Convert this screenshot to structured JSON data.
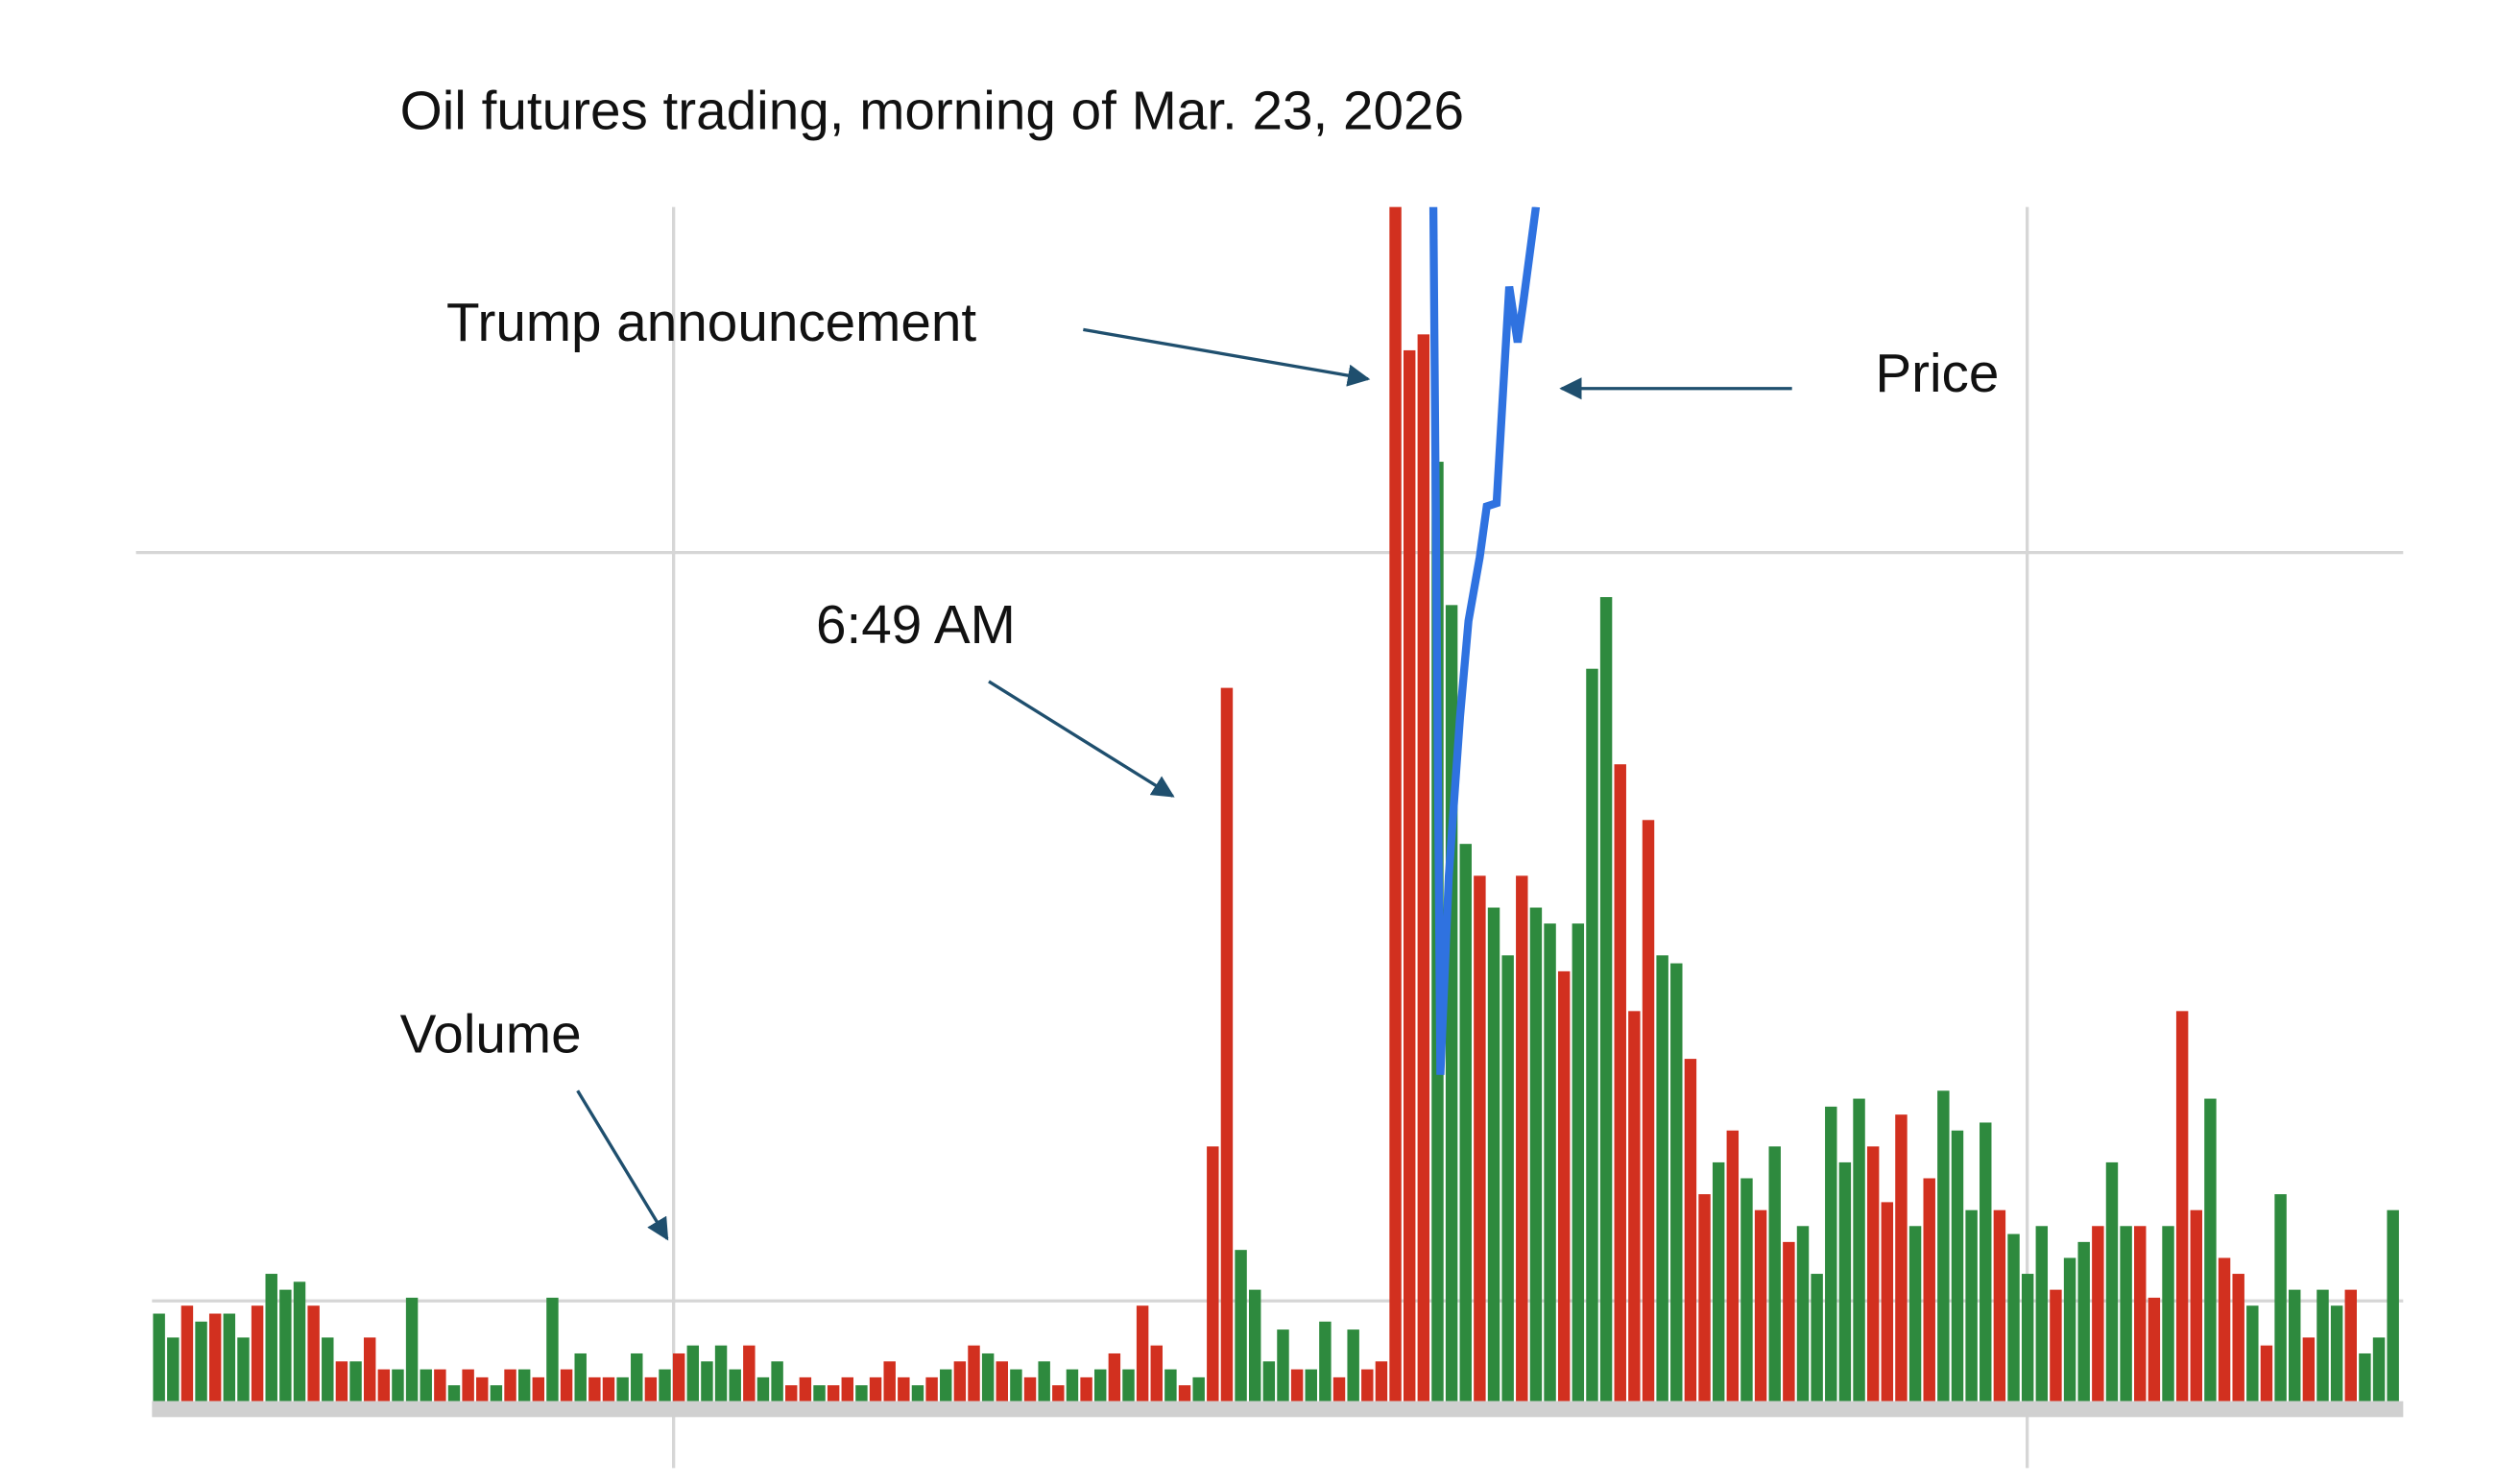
{
  "chart_data": {
    "type": "bar",
    "title": "Oil futures trading, morning of Mar. 23, 2026",
    "annotations": [
      "Trump announcement",
      "Price",
      "6:49 AM",
      "Volume"
    ],
    "xlim": [
      0,
      160
    ],
    "ylim": [
      0,
      750
    ],
    "values": [
      55,
      40,
      60,
      50,
      55,
      55,
      40,
      60,
      80,
      70,
      75,
      60,
      40,
      25,
      25,
      40,
      20,
      20,
      65,
      20,
      20,
      10,
      20,
      15,
      10,
      20,
      20,
      15,
      65,
      20,
      30,
      15,
      15,
      15,
      30,
      15,
      20,
      30,
      35,
      25,
      35,
      20,
      35,
      15,
      25,
      10,
      15,
      10,
      10,
      15,
      10,
      15,
      25,
      15,
      10,
      15,
      20,
      25,
      35,
      30,
      25,
      20,
      15,
      25,
      10,
      20,
      15,
      20,
      30,
      20,
      60,
      35,
      20,
      10,
      15,
      160,
      448,
      95,
      70,
      25,
      45,
      20,
      20,
      50,
      15,
      45,
      20,
      25,
      750,
      660,
      670,
      590,
      500,
      350,
      330,
      310,
      280,
      330,
      310,
      300,
      270,
      300,
      460,
      505,
      400,
      245,
      365,
      280,
      275,
      215,
      130,
      150,
      170,
      140,
      120,
      160,
      100,
      110,
      80,
      185,
      150,
      190,
      160,
      125,
      180,
      110,
      140,
      195,
      170,
      120,
      175,
      120,
      105,
      80,
      110,
      70,
      90,
      100,
      110,
      150,
      110,
      110,
      65,
      110,
      245,
      120,
      190,
      90,
      80,
      60,
      35,
      130,
      70,
      40,
      70,
      60,
      70,
      30,
      40,
      120
    ],
    "bar_colors": [
      "#2e8a3e",
      "#2e8a3e",
      "#d2301f",
      "#2e8a3e",
      "#d2301f",
      "#2e8a3e",
      "#2e8a3e",
      "#d2301f",
      "#2e8a3e",
      "#2e8a3e",
      "#2e8a3e",
      "#d2301f",
      "#2e8a3e",
      "#d2301f",
      "#2e8a3e",
      "#d2301f",
      "#d2301f",
      "#2e8a3e",
      "#2e8a3e",
      "#2e8a3e",
      "#d2301f",
      "#2e8a3e",
      "#d2301f",
      "#d2301f",
      "#2e8a3e",
      "#d2301f",
      "#2e8a3e",
      "#d2301f",
      "#2e8a3e",
      "#d2301f",
      "#2e8a3e",
      "#d2301f",
      "#d2301f",
      "#2e8a3e",
      "#2e8a3e",
      "#d2301f",
      "#2e8a3e",
      "#d2301f",
      "#2e8a3e",
      "#2e8a3e",
      "#2e8a3e",
      "#2e8a3e",
      "#d2301f",
      "#2e8a3e",
      "#2e8a3e",
      "#d2301f",
      "#d2301f",
      "#2e8a3e",
      "#d2301f",
      "#d2301f",
      "#2e8a3e",
      "#d2301f",
      "#d2301f",
      "#d2301f",
      "#2e8a3e",
      "#d2301f",
      "#2e8a3e",
      "#d2301f",
      "#d2301f",
      "#2e8a3e",
      "#d2301f",
      "#2e8a3e",
      "#d2301f",
      "#2e8a3e",
      "#d2301f",
      "#2e8a3e",
      "#d2301f",
      "#2e8a3e",
      "#d2301f",
      "#2e8a3e",
      "#d2301f",
      "#d2301f",
      "#2e8a3e",
      "#d2301f",
      "#2e8a3e",
      "#d2301f",
      "#d2301f",
      "#2e8a3e",
      "#2e8a3e",
      "#2e8a3e",
      "#2e8a3e",
      "#d2301f",
      "#2e8a3e",
      "#2e8a3e",
      "#d2301f",
      "#2e8a3e",
      "#d2301f",
      "#d2301f",
      "#d2301f",
      "#d2301f",
      "#d2301f",
      "#2e8a3e",
      "#2e8a3e",
      "#2e8a3e",
      "#d2301f",
      "#2e8a3e",
      "#2e8a3e",
      "#d2301f",
      "#2e8a3e",
      "#2e8a3e",
      "#d2301f",
      "#2e8a3e",
      "#2e8a3e",
      "#2e8a3e",
      "#d2301f",
      "#d2301f",
      "#d2301f",
      "#2e8a3e",
      "#2e8a3e",
      "#d2301f",
      "#d2301f",
      "#2e8a3e",
      "#d2301f",
      "#2e8a3e",
      "#d2301f",
      "#2e8a3e",
      "#d2301f",
      "#2e8a3e",
      "#2e8a3e",
      "#2e8a3e",
      "#2e8a3e",
      "#2e8a3e",
      "#d2301f",
      "#d2301f",
      "#d2301f",
      "#2e8a3e",
      "#d2301f",
      "#2e8a3e",
      "#2e8a3e",
      "#2e8a3e",
      "#2e8a3e",
      "#d2301f",
      "#2e8a3e",
      "#2e8a3e",
      "#2e8a3e",
      "#d2301f",
      "#2e8a3e",
      "#2e8a3e",
      "#d2301f",
      "#2e8a3e",
      "#2e8a3e",
      "#d2301f",
      "#d2301f",
      "#2e8a3e",
      "#d2301f",
      "#d2301f",
      "#2e8a3e",
      "#d2301f",
      "#d2301f",
      "#2e8a3e",
      "#d2301f",
      "#2e8a3e",
      "#2e8a3e",
      "#d2301f",
      "#2e8a3e",
      "#2e8a3e",
      "#d2301f",
      "#2e8a3e",
      "#2e8a3e",
      "#2e8a3e"
    ],
    "price": {
      "axis": "y2",
      "color": "#2f72e0",
      "x": [
        91.2,
        91.7,
        92.3,
        93.1,
        93.7,
        94.5,
        95.0,
        95.7,
        96.2,
        96.6,
        97.2,
        97.6,
        98.2,
        98.5
      ],
      "values": [
        750,
        205,
        330,
        430,
        490,
        530,
        562,
        564,
        640,
        700,
        665,
        690,
        730,
        750
      ]
    },
    "y2lim": [
      0,
      750
    ]
  }
}
